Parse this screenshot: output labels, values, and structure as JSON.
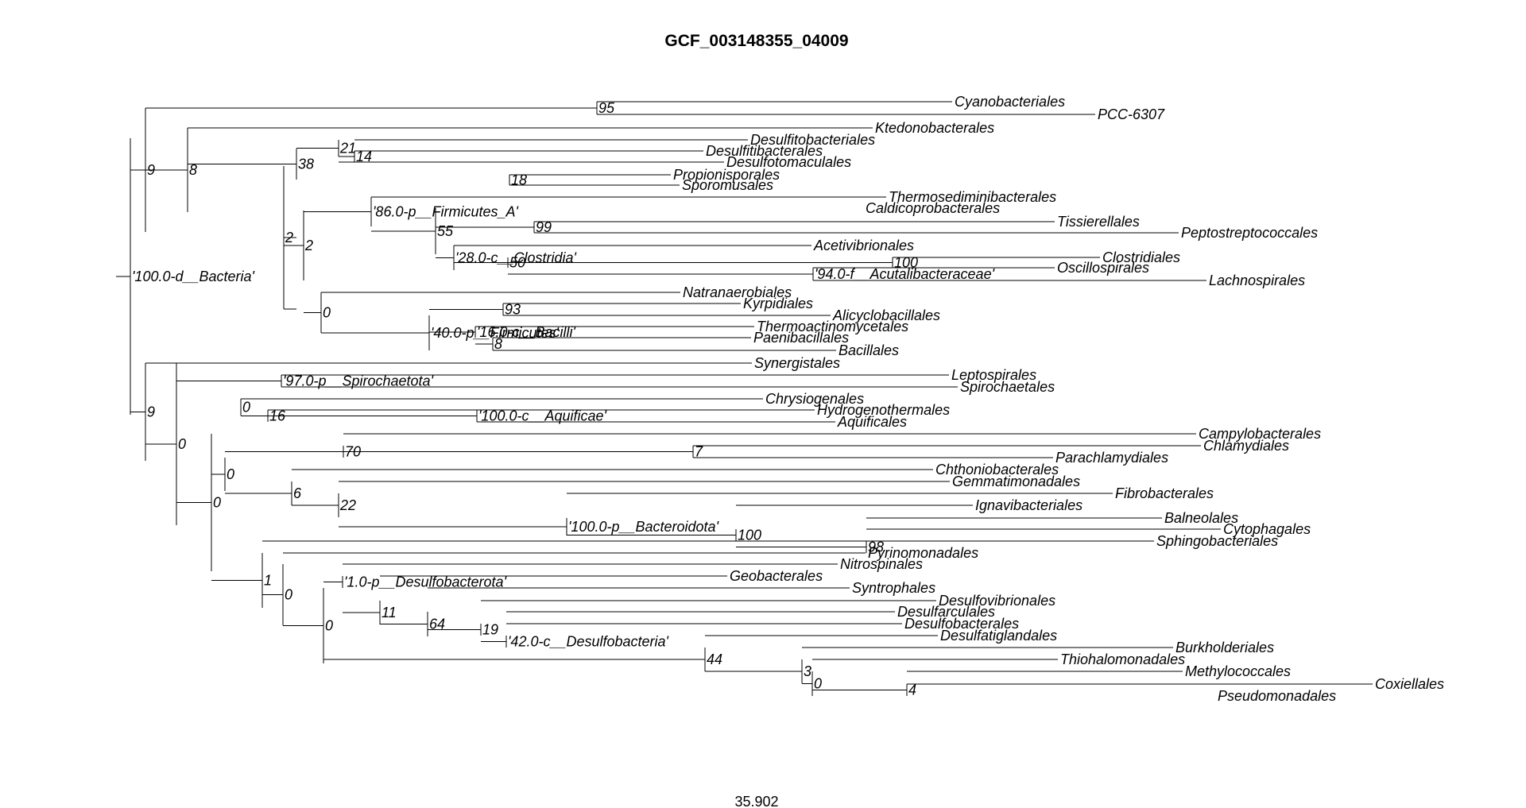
{
  "title": "GCF_003148355_04009",
  "scale_value": "35.902",
  "tree": {
    "tips": [
      "Cyanobacteriales",
      "PCC-6307",
      "Ktedonobacterales",
      "Desulfitobacteriales",
      "Desulfitibacterales",
      "Desulfotomaculales",
      "Propionisporales",
      "Sporomusales",
      "Thermosediminibacterales",
      "Caldicoprobacterales",
      "Tissierellales",
      "Peptostreptococcales",
      "Acetivibrionales",
      "Clostridiales",
      "Oscillospirales",
      "Lachnospirales",
      "Natranaerobiales",
      "Kyrpidiales",
      "Alicyclobacillales",
      "Thermoactinomycetales",
      "Paenibacillales",
      "Bacillales",
      "Synergistales",
      "Leptospirales",
      "Spirochaetales",
      "Chrysiogenales",
      "Hydrogenothermales",
      "Aquificales",
      "Campylobacterales",
      "Chlamydiales",
      "Parachlamydiales",
      "Chthoniobacterales",
      "Gemmatimonadales",
      "Fibrobacterales",
      "Ignavibacteriales",
      "Balneolales",
      "Cytophagales",
      "Sphingobacteriales",
      "Pyrinomonadales",
      "Nitrospinales",
      "Geobacterales",
      "Syntrophales",
      "Desulfovibrionales",
      "Desulfarculales",
      "Desulfobacterales",
      "Desulfatiglandales",
      "Burkholderiales",
      "Thiohalomonadales",
      "Methylococcales",
      "Coxiellales",
      "Pseudomonadales"
    ],
    "node_labels": [
      "'100.0-d__Bacteria'",
      "9",
      "95",
      "8",
      "38",
      "21",
      "14",
      "18",
      "2",
      "2",
      "'86.0-p__Firmicutes_A'",
      "55",
      "99",
      "'28.0-c__Clostridia'",
      "50",
      "100",
      "'94.0-f__Acutalibacteraceae'",
      "0",
      "'40.0-p__Firmicutes'",
      "93",
      "'16.0-c__Bacilli'",
      "8",
      "9",
      "0",
      "'97.0-p__Spirochaetota'",
      "0",
      "16",
      "'100.0-c__Aquificae'",
      "0",
      "0",
      "70",
      "7",
      "6",
      "22",
      "'100.0-p__Bacteroidota'",
      "100",
      "98",
      "1",
      "0",
      "0",
      "'1.0-p__Desulfobacterota'",
      "11",
      "64",
      "19",
      "'42.0-c__Desulfobacteria'",
      "44",
      "3",
      "0",
      "4"
    ]
  }
}
